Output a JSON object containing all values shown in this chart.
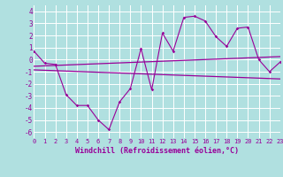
{
  "x": [
    0,
    1,
    2,
    3,
    4,
    5,
    6,
    7,
    8,
    9,
    10,
    11,
    12,
    13,
    14,
    15,
    16,
    17,
    18,
    19,
    20,
    21,
    22,
    23
  ],
  "y_main": [
    0.7,
    -0.3,
    -0.4,
    -2.9,
    -3.8,
    -3.8,
    -5.0,
    -5.8,
    -3.5,
    -2.4,
    0.9,
    -2.5,
    2.2,
    0.7,
    3.5,
    3.6,
    3.2,
    1.9,
    1.1,
    2.6,
    2.7,
    0.0,
    -1.0,
    -0.2
  ],
  "trend1_x": [
    0,
    23
  ],
  "trend1_y": [
    -0.55,
    0.25
  ],
  "trend2_x": [
    0,
    23
  ],
  "trend2_y": [
    -0.85,
    -1.6
  ],
  "xlim": [
    0,
    23
  ],
  "ylim": [
    -6.5,
    4.5
  ],
  "yticks": [
    -6,
    -5,
    -4,
    -3,
    -2,
    -1,
    0,
    1,
    2,
    3,
    4
  ],
  "xticks": [
    0,
    1,
    2,
    3,
    4,
    5,
    6,
    7,
    8,
    9,
    10,
    11,
    12,
    13,
    14,
    15,
    16,
    17,
    18,
    19,
    20,
    21,
    22,
    23
  ],
  "xlabel": "Windchill (Refroidissement éolien,°C)",
  "line_color": "#990099",
  "bg_color": "#b0e0e0",
  "grid_color": "#ffffff",
  "tick_fontsize": 5.0,
  "xlabel_fontsize": 6.0
}
